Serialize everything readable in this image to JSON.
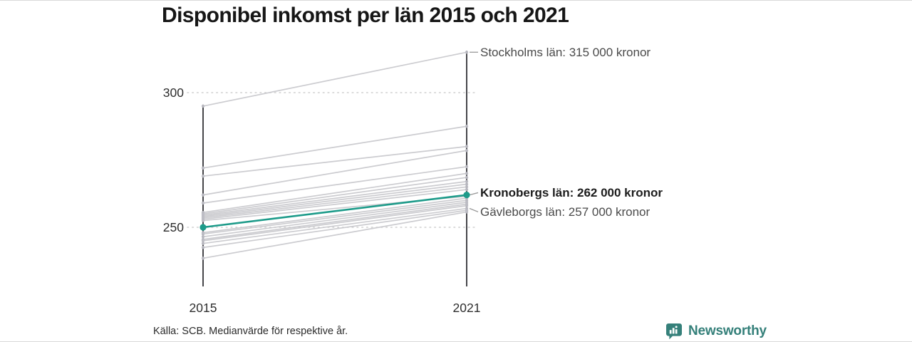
{
  "title": "Disponibel inkomst per län 2015 och 2021",
  "chart_data": {
    "type": "line",
    "subtype": "slopegraph",
    "x_ticks": [
      {
        "label": "2015"
      },
      {
        "label": "2021"
      }
    ],
    "y_ticks": [
      {
        "value": 300,
        "label": "300"
      },
      {
        "value": 250,
        "label": "250"
      }
    ],
    "values_unit": "tusen kronor",
    "grid": "dotted horizontal lines at y ticks",
    "legend": "none",
    "ylim": [
      227,
      318
    ],
    "series": [
      {
        "name": "Stockholms län",
        "values": [
          295,
          315
        ],
        "highlight": false
      },
      {
        "name": "",
        "values": [
          272,
          287.5
        ],
        "highlight": false
      },
      {
        "name": "",
        "values": [
          269,
          280
        ],
        "highlight": false
      },
      {
        "name": "",
        "values": [
          262,
          278.5
        ],
        "highlight": false
      },
      {
        "name": "",
        "values": [
          259,
          272.5
        ],
        "highlight": false
      },
      {
        "name": "",
        "values": [
          255.5,
          270
        ],
        "highlight": false
      },
      {
        "name": "",
        "values": [
          255,
          268.5
        ],
        "highlight": false
      },
      {
        "name": "",
        "values": [
          254.5,
          267
        ],
        "highlight": false
      },
      {
        "name": "",
        "values": [
          254,
          266
        ],
        "highlight": false
      },
      {
        "name": "",
        "values": [
          253.5,
          265
        ],
        "highlight": false
      },
      {
        "name": "",
        "values": [
          253,
          264
        ],
        "highlight": false
      },
      {
        "name": "",
        "values": [
          252.5,
          261.5
        ],
        "highlight": false
      },
      {
        "name": "Kronobergs län",
        "values": [
          250,
          262
        ],
        "highlight": true
      },
      {
        "name": "",
        "values": [
          248,
          260.8
        ],
        "highlight": false
      },
      {
        "name": "",
        "values": [
          247.5,
          260
        ],
        "highlight": false
      },
      {
        "name": "",
        "values": [
          246.5,
          259.3
        ],
        "highlight": false
      },
      {
        "name": "",
        "values": [
          245.5,
          258.6
        ],
        "highlight": false
      },
      {
        "name": "",
        "values": [
          245,
          258
        ],
        "highlight": false
      },
      {
        "name": "Gävleborgs län",
        "values": [
          244,
          257
        ],
        "highlight": false
      },
      {
        "name": "",
        "values": [
          242.5,
          256.3
        ],
        "highlight": false
      },
      {
        "name": "",
        "values": [
          238.5,
          255.7
        ],
        "highlight": false
      }
    ]
  },
  "annotations": [
    {
      "id": "stockholm",
      "text": "Stockholms län: 315 000 kronor",
      "value": 315,
      "emphasis": false
    },
    {
      "id": "kronoberg",
      "text": "Kronobergs län: 262 000 kronor",
      "value": 262,
      "emphasis": true
    },
    {
      "id": "gavleborg",
      "text": "Gävleborgs län: 257 000 kronor",
      "value": 257,
      "emphasis": false
    }
  ],
  "footer": {
    "source": "Källa: SCB. Medianvärde för respektive år."
  },
  "logo": {
    "text": "Newsworthy"
  },
  "colors": {
    "highlight": "#1d9b8a",
    "gray_line": "#c6c6cb",
    "gray_dot": "#bdbdc4",
    "axis": "#26262b",
    "grid": "#cfcfcf",
    "connector": "#9a9a9a",
    "logo": "#35807a"
  }
}
